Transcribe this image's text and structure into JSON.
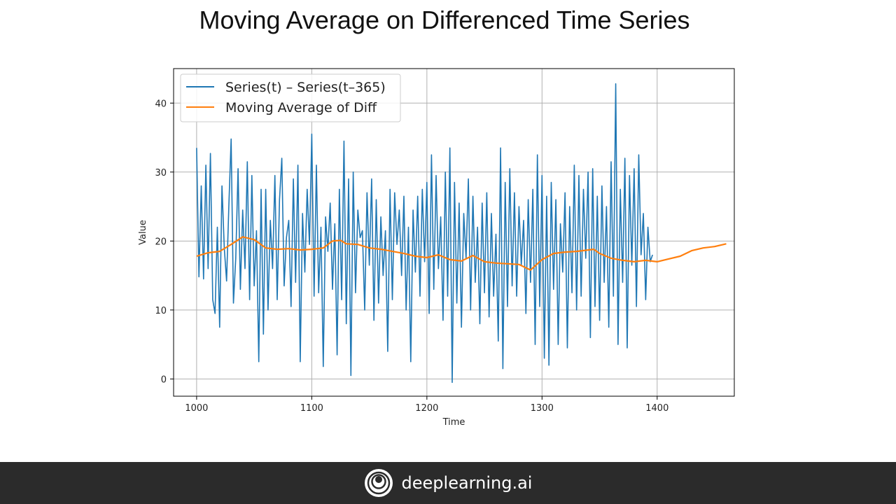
{
  "slide": {
    "title": "Moving Average on Differenced Time Series"
  },
  "footer": {
    "brand": "deeplearning.ai",
    "logo_icon": "deeplearning-logo-icon"
  },
  "chart_data": {
    "type": "line",
    "xlabel": "Time",
    "ylabel": "Value",
    "xlim": [
      980,
      1467
    ],
    "ylim": [
      -2.5,
      45
    ],
    "xticks": [
      1000,
      1100,
      1200,
      1300,
      1400
    ],
    "yticks": [
      0,
      10,
      20,
      30,
      40
    ],
    "grid": true,
    "legend_position": "top-left",
    "series": [
      {
        "name": "Series(t) – Series(t–365)",
        "color": "#1f77b4",
        "x_start": 1000,
        "x_step": 2,
        "values": [
          33.5,
          14.8,
          28.0,
          14.5,
          31.0,
          16.0,
          32.7,
          11.5,
          9.5,
          22.0,
          7.5,
          28.0,
          19.0,
          14.2,
          25.0,
          34.8,
          11.0,
          17.5,
          30.5,
          13.0,
          24.5,
          16.0,
          31.5,
          11.5,
          29.5,
          13.5,
          21.5,
          2.5,
          27.5,
          6.5,
          27.5,
          10.0,
          23.0,
          16.0,
          29.5,
          11.5,
          26.0,
          32.0,
          13.5,
          20.5,
          23.0,
          10.5,
          29.0,
          14.0,
          31.0,
          2.5,
          24.0,
          15.5,
          27.5,
          19.5,
          35.5,
          12.0,
          31.0,
          12.5,
          22.0,
          1.8,
          23.5,
          18.5,
          25.5,
          13.0,
          22.5,
          3.5,
          27.5,
          11.5,
          34.5,
          8.0,
          29.0,
          0.5,
          30.0,
          12.5,
          24.5,
          20.5,
          21.5,
          10.0,
          27.0,
          16.5,
          29.0,
          8.5,
          26.0,
          11.0,
          23.5,
          15.0,
          21.5,
          4.0,
          27.5,
          11.5,
          27.0,
          19.5,
          24.5,
          15.0,
          26.5,
          10.0,
          22.0,
          2.5,
          24.5,
          15.5,
          26.5,
          12.0,
          27.5,
          17.0,
          28.5,
          9.5,
          32.5,
          13.0,
          29.5,
          16.0,
          23.5,
          8.5,
          30.0,
          12.0,
          33.5,
          -0.5,
          28.5,
          11.0,
          25.5,
          7.5,
          24.0,
          17.5,
          29.0,
          10.0,
          26.5,
          14.0,
          22.0,
          8.0,
          25.5,
          12.5,
          27.0,
          9.0,
          24.0,
          12.0,
          21.0,
          5.5,
          33.5,
          1.5,
          28.5,
          10.5,
          30.5,
          13.5,
          27.0,
          12.0,
          25.0,
          16.5,
          23.0,
          9.5,
          26.0,
          14.0,
          27.5,
          5.0,
          32.5,
          10.5,
          29.5,
          3.0,
          26.5,
          2.0,
          28.5,
          13.0,
          26.0,
          5.0,
          22.5,
          15.5,
          27.0,
          4.5,
          25.0,
          12.5,
          31.0,
          10.0,
          29.5,
          12.0,
          27.5,
          17.5,
          30.0,
          6.0,
          30.5,
          10.5,
          26.5,
          8.5,
          28.0,
          14.0,
          25.0,
          7.5,
          31.5,
          12.0,
          42.8,
          5.0,
          27.5,
          14.0,
          32.0,
          4.5,
          29.5,
          16.5,
          30.5,
          10.5,
          32.5,
          18.0,
          24.0,
          11.5,
          22.0,
          17.0,
          18.0
        ]
      },
      {
        "name": "Moving Average of Diff",
        "color": "#ff7f0e",
        "x": [
          1000,
          1010,
          1020,
          1030,
          1040,
          1050,
          1060,
          1070,
          1080,
          1090,
          1100,
          1110,
          1118,
          1125,
          1130,
          1140,
          1150,
          1160,
          1170,
          1180,
          1190,
          1200,
          1210,
          1220,
          1230,
          1240,
          1250,
          1260,
          1270,
          1280,
          1290,
          1300,
          1310,
          1320,
          1330,
          1345,
          1350,
          1360,
          1370,
          1380,
          1390,
          1400,
          1410,
          1420,
          1430,
          1440,
          1450,
          1460
        ],
        "values": [
          17.8,
          18.3,
          18.5,
          19.5,
          20.6,
          20.2,
          19.0,
          18.8,
          18.9,
          18.7,
          18.8,
          19.0,
          20.0,
          20.1,
          19.6,
          19.5,
          19.0,
          18.8,
          18.5,
          18.2,
          17.8,
          17.6,
          18.0,
          17.3,
          17.1,
          17.9,
          17.0,
          16.8,
          16.7,
          16.6,
          15.8,
          17.3,
          18.2,
          18.4,
          18.5,
          18.8,
          18.2,
          17.5,
          17.2,
          17.0,
          17.2,
          17.0,
          17.4,
          17.8,
          18.6,
          19.0,
          19.2,
          19.6
        ]
      }
    ]
  }
}
